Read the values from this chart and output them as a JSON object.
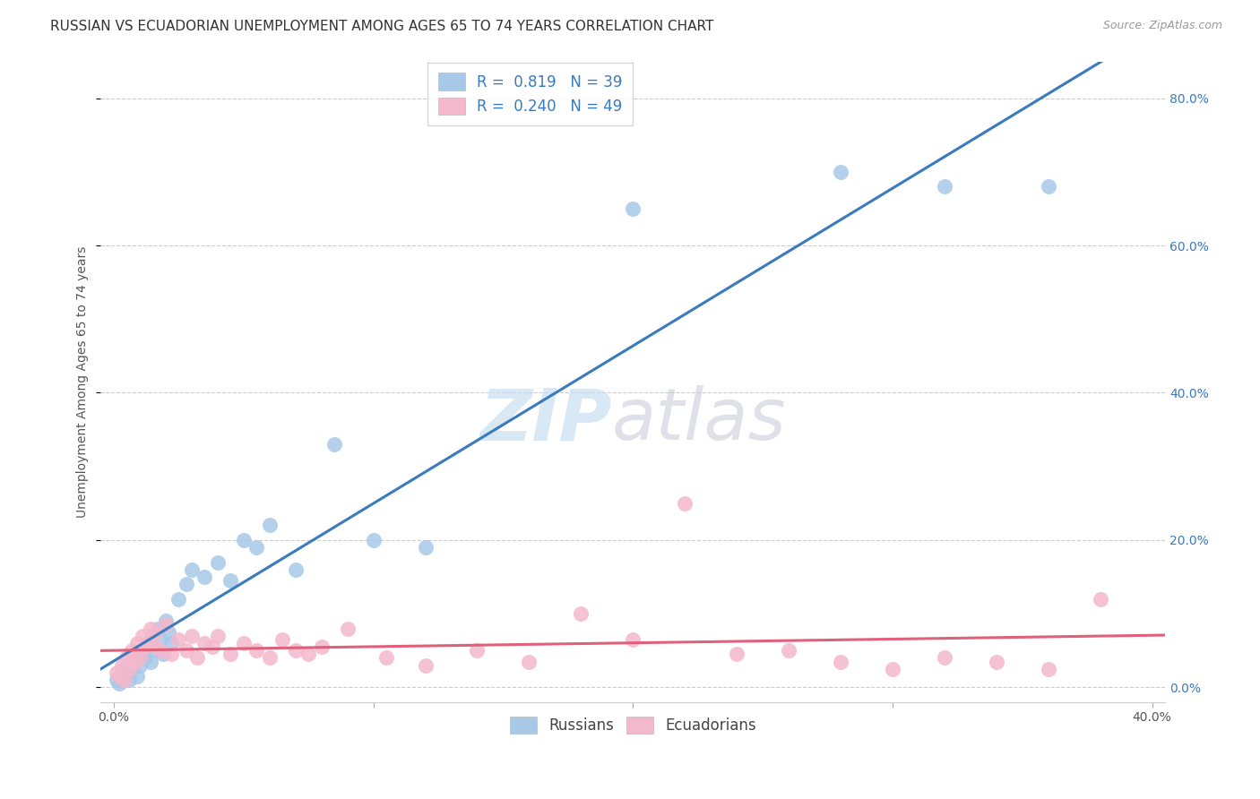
{
  "title": "RUSSIAN VS ECUADORIAN UNEMPLOYMENT AMONG AGES 65 TO 74 YEARS CORRELATION CHART",
  "source": "Source: ZipAtlas.com",
  "ylabel": "Unemployment Among Ages 65 to 74 years",
  "xlim": [
    -0.5,
    40.5
  ],
  "ylim": [
    -2.0,
    85.0
  ],
  "xticks": [
    0,
    10,
    20,
    30,
    40
  ],
  "xticklabels": [
    "0.0%",
    "",
    "",
    "",
    "40.0%"
  ],
  "yticks": [
    0,
    20,
    40,
    60,
    80
  ],
  "yticklabels": [
    "0.0%",
    "20.0%",
    "40.0%",
    "60.0%",
    "80.0%"
  ],
  "russian_color": "#a8c8e8",
  "ecuadorian_color": "#f4b8cc",
  "russian_line_color": "#3a7abf",
  "ecuadorian_line_color": "#e0607a",
  "russian_R": 0.819,
  "russian_N": 39,
  "ecuadorian_R": 0.24,
  "ecuadorian_N": 49,
  "background_color": "#ffffff",
  "grid_color": "#cccccc",
  "watermark_ZIP": "ZIP",
  "watermark_atlas": "atlas",
  "russians_x": [
    0.1,
    0.2,
    0.3,
    0.4,
    0.5,
    0.6,
    0.7,
    0.8,
    0.9,
    1.0,
    1.1,
    1.2,
    1.3,
    1.4,
    1.5,
    1.6,
    1.7,
    1.8,
    1.9,
    2.0,
    2.1,
    2.2,
    2.5,
    2.8,
    3.0,
    3.5,
    4.0,
    4.5,
    5.0,
    5.5,
    6.0,
    7.0,
    8.5,
    10.0,
    12.0,
    20.0,
    28.0,
    32.0,
    36.0
  ],
  "russians_y": [
    1.0,
    0.5,
    2.0,
    1.5,
    3.0,
    1.0,
    2.5,
    4.0,
    1.5,
    3.0,
    5.0,
    4.0,
    6.0,
    3.5,
    7.0,
    5.0,
    8.0,
    6.5,
    4.5,
    9.0,
    7.5,
    6.0,
    12.0,
    14.0,
    16.0,
    15.0,
    17.0,
    14.5,
    20.0,
    19.0,
    22.0,
    16.0,
    33.0,
    20.0,
    19.0,
    65.0,
    70.0,
    68.0,
    68.0
  ],
  "ecuadorians_x": [
    0.1,
    0.2,
    0.3,
    0.4,
    0.5,
    0.6,
    0.7,
    0.8,
    0.9,
    1.0,
    1.1,
    1.2,
    1.4,
    1.5,
    1.6,
    1.8,
    2.0,
    2.2,
    2.5,
    2.8,
    3.0,
    3.2,
    3.5,
    3.8,
    4.0,
    4.5,
    5.0,
    5.5,
    6.0,
    6.5,
    7.0,
    7.5,
    8.0,
    9.0,
    10.5,
    12.0,
    14.0,
    16.0,
    18.0,
    20.0,
    22.0,
    24.0,
    26.0,
    28.0,
    30.0,
    32.0,
    34.0,
    36.0,
    38.0
  ],
  "ecuadorians_y": [
    2.0,
    1.5,
    3.0,
    1.0,
    4.0,
    2.5,
    5.0,
    3.5,
    6.0,
    4.0,
    7.0,
    5.5,
    8.0,
    6.0,
    7.5,
    5.0,
    8.5,
    4.5,
    6.5,
    5.0,
    7.0,
    4.0,
    6.0,
    5.5,
    7.0,
    4.5,
    6.0,
    5.0,
    4.0,
    6.5,
    5.0,
    4.5,
    5.5,
    8.0,
    4.0,
    3.0,
    5.0,
    3.5,
    10.0,
    6.5,
    25.0,
    4.5,
    5.0,
    3.5,
    2.5,
    4.0,
    3.5,
    2.5,
    12.0
  ],
  "title_fontsize": 11,
  "axis_label_fontsize": 10,
  "tick_fontsize": 10,
  "legend_fontsize": 12
}
